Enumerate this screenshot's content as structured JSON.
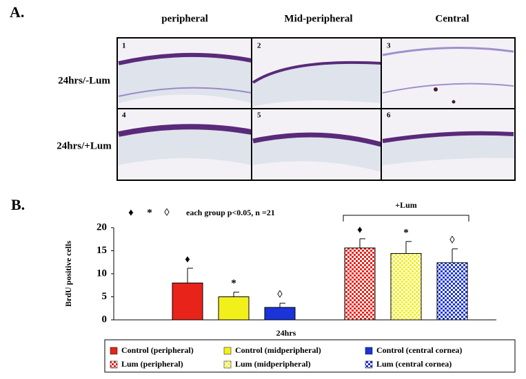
{
  "panel_a": {
    "label": "A.",
    "columns": [
      "peripheral",
      "Mid-peripheral",
      "Central"
    ],
    "rows": [
      "24hrs/-Lum",
      "24hrs/+Lum"
    ],
    "images": [
      "1",
      "2",
      "3",
      "4",
      "5",
      "6"
    ]
  },
  "panel_b": {
    "label": "B."
  },
  "chart_data": {
    "type": "bar",
    "y_label": "BrdU positive cells",
    "categories": [
      "24hrs"
    ],
    "ylim": [
      0,
      20
    ],
    "yticks": [
      0,
      5,
      10,
      15,
      20
    ],
    "significance_symbols": [
      "♦",
      "*",
      "◊"
    ],
    "annotation": "each group p<0.05, n =21",
    "group_label": "+Lum",
    "series": [
      {
        "name": "Control (peripheral)",
        "color": "#e8231a",
        "pattern": "solid",
        "marker": "♦",
        "values": [
          8
        ],
        "errors": [
          3.2
        ]
      },
      {
        "name": "Control (midperipheral)",
        "color": "#f2f01a",
        "pattern": "solid",
        "marker": "*",
        "values": [
          5
        ],
        "errors": [
          1
        ]
      },
      {
        "name": "Control (central cornea)",
        "color": "#1a34d8",
        "pattern": "solid",
        "marker": "◊",
        "values": [
          2.7
        ],
        "errors": [
          0.9
        ]
      },
      {
        "name": "Lum (peripheral)",
        "color": "#e8231a",
        "pattern": "checker",
        "marker": "♦",
        "values": [
          15.6
        ],
        "errors": [
          2
        ]
      },
      {
        "name": "Lum (midperipheral)",
        "color": "#f2f01a",
        "pattern": "checker",
        "marker": "*",
        "values": [
          14.4
        ],
        "errors": [
          2.6
        ]
      },
      {
        "name": "Lum (central cornea)",
        "color": "#1a34d8",
        "pattern": "checker",
        "marker": "◊",
        "values": [
          12.4
        ],
        "errors": [
          3
        ]
      }
    ]
  }
}
